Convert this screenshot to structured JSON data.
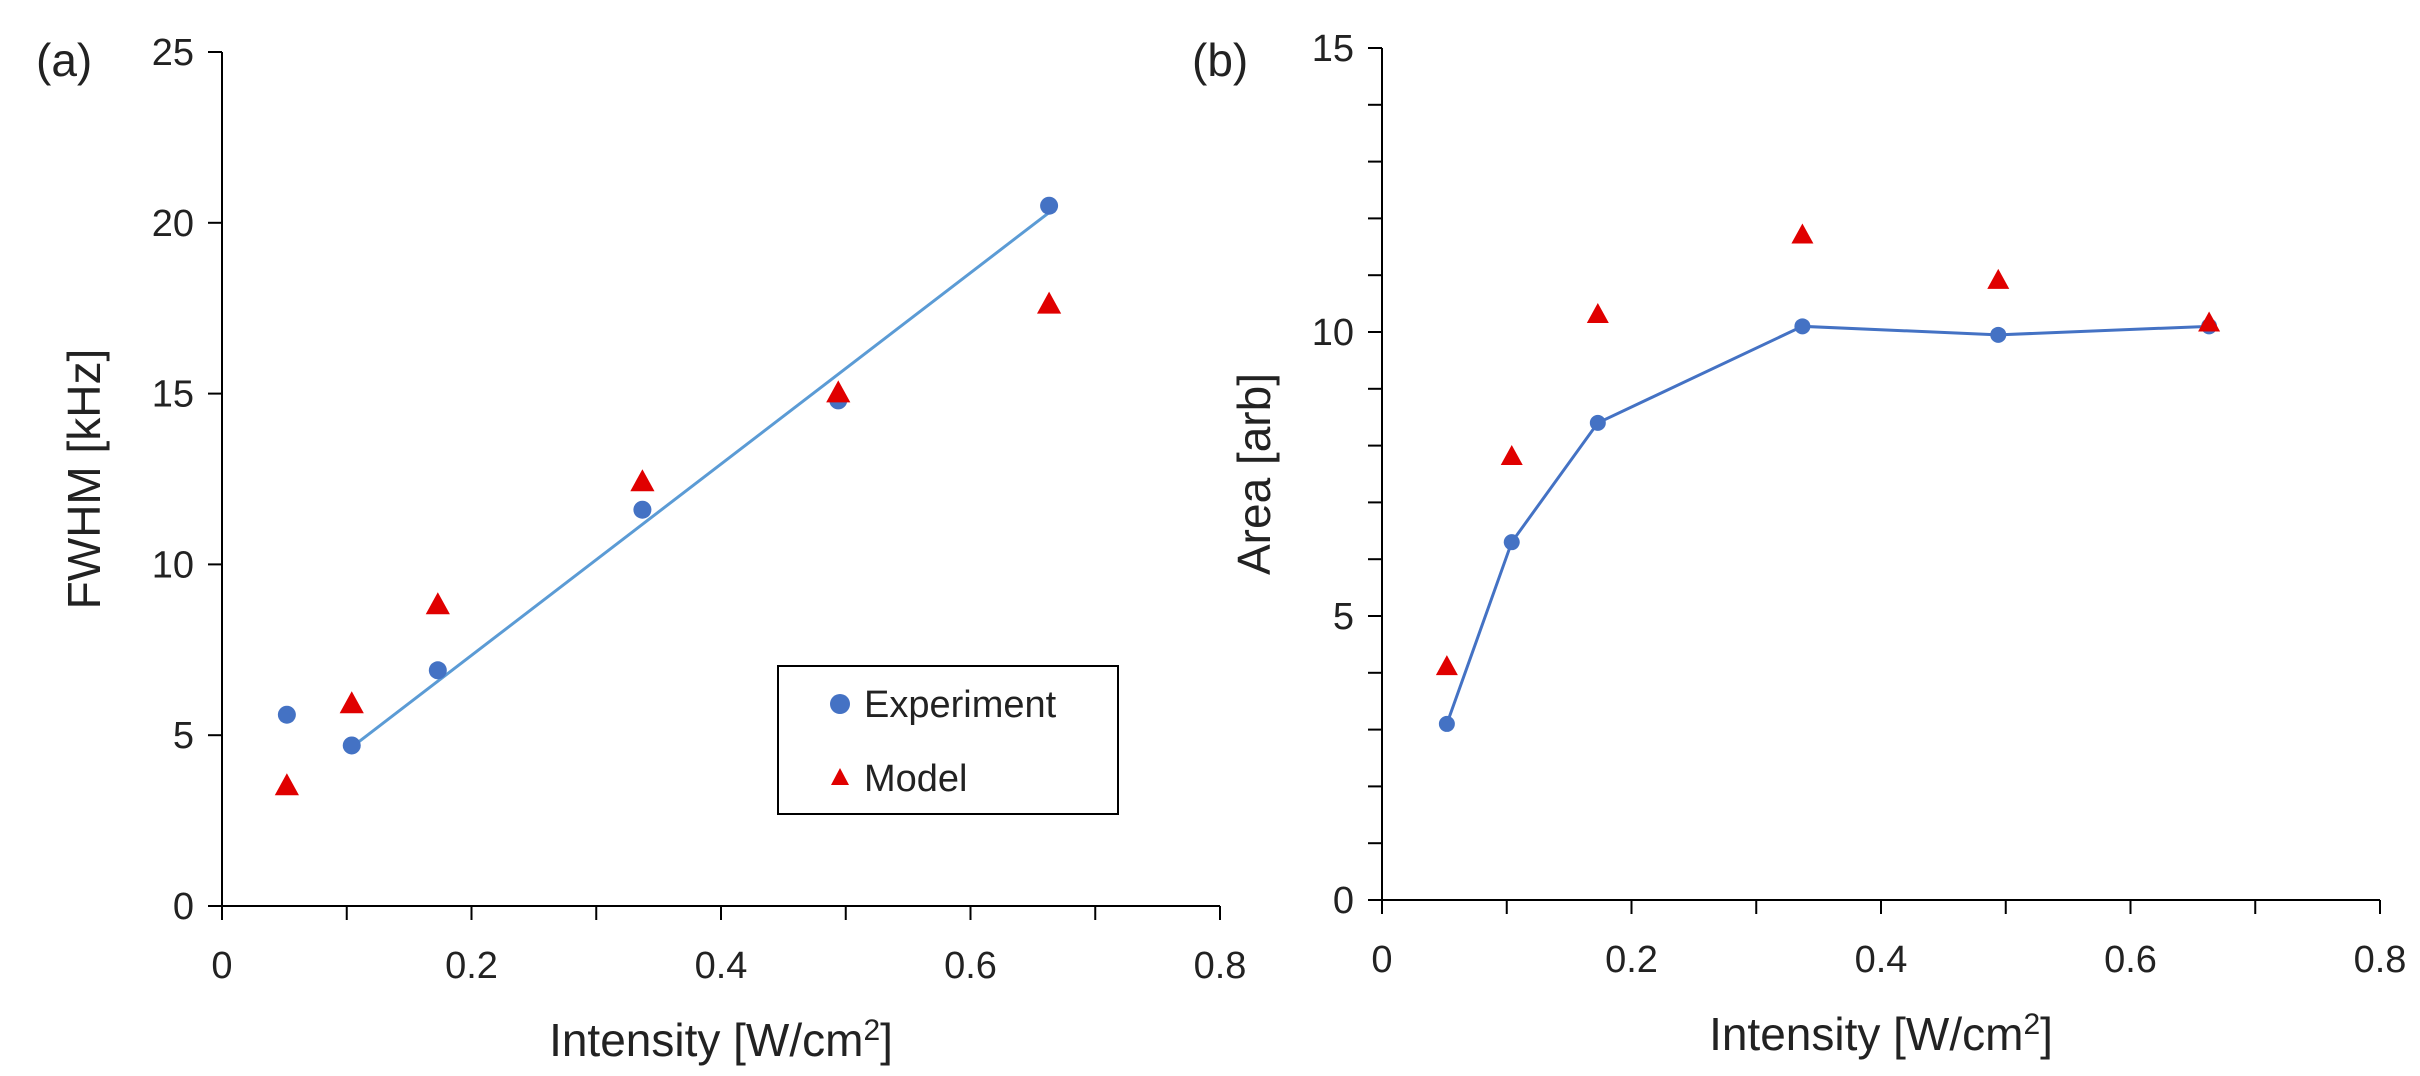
{
  "chart_data": [
    {
      "panel_label": "(a)",
      "type": "scatter",
      "xlabel": "Intensity [W/cm",
      "xlabel_sup": "2",
      "xlabel_end": "]",
      "ylabel": "FWHM [kHz]",
      "xlim": [
        0,
        0.8
      ],
      "ylim": [
        0,
        25
      ],
      "x_ticks": [
        "0",
        "0.2",
        "0.4",
        "0.6",
        "0.8"
      ],
      "y_ticks": [
        "0",
        "5",
        "10",
        "15",
        "20",
        "25"
      ],
      "x_minor_step": 0.1,
      "series": [
        {
          "name": "Experiment",
          "marker": "circle",
          "color": "#4472C4",
          "x": [
            0.052,
            0.104,
            0.173,
            0.337,
            0.494,
            0.663
          ],
          "y": [
            5.6,
            4.7,
            6.9,
            11.6,
            14.8,
            20.5
          ]
        },
        {
          "name": "Model",
          "marker": "triangle",
          "color": "#E00000",
          "x": [
            0.052,
            0.104,
            0.173,
            0.337,
            0.494,
            0.663
          ],
          "y": [
            3.5,
            5.9,
            8.8,
            12.4,
            15.0,
            17.6
          ]
        }
      ],
      "trendline": {
        "color": "#5B9BD5",
        "x": [
          0.104,
          0.663
        ],
        "y": [
          4.65,
          20.3
        ]
      },
      "legend": {
        "position": "bottom-right"
      }
    },
    {
      "panel_label": "(b)",
      "type": "line",
      "xlabel": "Intensity [W/cm",
      "xlabel_sup": "2",
      "xlabel_end": "]",
      "ylabel": "Area [arb]",
      "xlim": [
        0,
        0.8
      ],
      "ylim": [
        0,
        15
      ],
      "x_ticks": [
        "0",
        "0.2",
        "0.4",
        "0.6",
        "0.8"
      ],
      "y_ticks": [
        "0",
        "5",
        "10",
        "15"
      ],
      "x_minor_step": 0.1,
      "y_minor_step": 1,
      "series": [
        {
          "name": "Experiment",
          "marker": "circle",
          "color": "#4472C4",
          "connect": true,
          "x": [
            0.052,
            0.104,
            0.173,
            0.337,
            0.494,
            0.663
          ],
          "y": [
            3.1,
            6.3,
            8.4,
            10.1,
            9.95,
            10.1
          ]
        },
        {
          "name": "Model",
          "marker": "triangle",
          "color": "#E00000",
          "x": [
            0.052,
            0.104,
            0.173,
            0.337,
            0.494,
            0.663
          ],
          "y": [
            4.1,
            7.8,
            10.3,
            11.7,
            10.9,
            10.15
          ]
        }
      ]
    }
  ]
}
